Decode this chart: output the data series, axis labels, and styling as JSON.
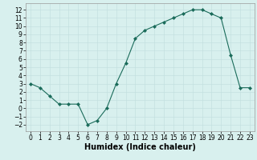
{
  "x": [
    0,
    1,
    2,
    3,
    4,
    5,
    6,
    7,
    8,
    9,
    10,
    11,
    12,
    13,
    14,
    15,
    16,
    17,
    18,
    19,
    20,
    21,
    22,
    23
  ],
  "y": [
    3,
    2.5,
    1.5,
    0.5,
    0.5,
    0.5,
    -2,
    -1.5,
    0,
    3,
    5.5,
    8.5,
    9.5,
    10,
    10.5,
    11,
    11.5,
    12,
    12,
    11.5,
    11,
    6.5,
    2.5,
    2.5
  ],
  "line_color": "#1a6b5a",
  "marker": "D",
  "marker_size": 2,
  "bg_color": "#d8f0ee",
  "grid_color": "#c0dedd",
  "grid_color_major": "#b8d8d6",
  "xlabel": "Humidex (Indice chaleur)",
  "ylim": [
    -2.8,
    12.8
  ],
  "xlim": [
    -0.5,
    23.5
  ],
  "yticks": [
    -2,
    -1,
    0,
    1,
    2,
    3,
    4,
    5,
    6,
    7,
    8,
    9,
    10,
    11,
    12
  ],
  "xticks": [
    0,
    1,
    2,
    3,
    4,
    5,
    6,
    7,
    8,
    9,
    10,
    11,
    12,
    13,
    14,
    15,
    16,
    17,
    18,
    19,
    20,
    21,
    22,
    23
  ],
  "tick_label_fontsize": 5.5,
  "xlabel_fontsize": 7,
  "linewidth": 0.8
}
